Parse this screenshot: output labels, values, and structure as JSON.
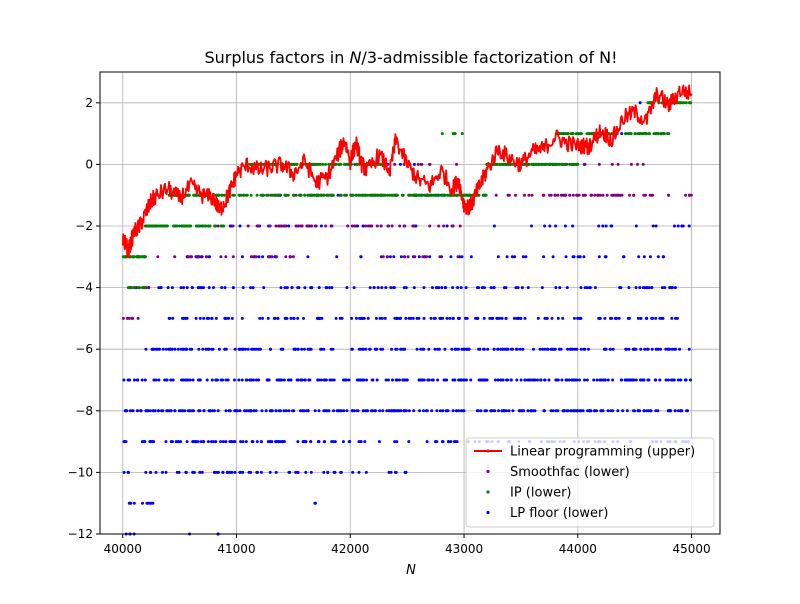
{
  "chart_data": {
    "type": "scatter",
    "title": "Surplus factors in N/3-admissible factorization of N!",
    "title_prefix": "Surplus factors in ",
    "title_italic": "N",
    "title_suffix": "/3-admissible factorization of N!",
    "xlabel": "N",
    "ylabel": "",
    "xlim": [
      39800,
      45250
    ],
    "ylim": [
      -12,
      3
    ],
    "xticks": [
      40000,
      41000,
      42000,
      43000,
      44000,
      45000
    ],
    "yticks": [
      -12,
      -10,
      -8,
      -6,
      -4,
      -2,
      0,
      2
    ],
    "ytick_labels": [
      "−12",
      "−10",
      "−8",
      "−6",
      "−4",
      "−2",
      "0",
      "2"
    ],
    "grid": true,
    "legend_position": "lower-right",
    "series": [
      {
        "name": "Linear programming (upper)",
        "kind": "line",
        "color": "#ff0000",
        "points": [
          [
            40000,
            -2.4
          ],
          [
            40050,
            -2.8
          ],
          [
            40100,
            -2.2
          ],
          [
            40150,
            -2.0
          ],
          [
            40200,
            -1.6
          ],
          [
            40250,
            -1.2
          ],
          [
            40300,
            -1.0
          ],
          [
            40400,
            -0.8
          ],
          [
            40500,
            -1.1
          ],
          [
            40600,
            -0.7
          ],
          [
            40700,
            -1.0
          ],
          [
            40800,
            -1.1
          ],
          [
            40850,
            -1.5
          ],
          [
            40900,
            -1.2
          ],
          [
            40950,
            -0.8
          ],
          [
            41000,
            -0.3
          ],
          [
            41100,
            0.0
          ],
          [
            41200,
            -0.2
          ],
          [
            41300,
            -0.1
          ],
          [
            41400,
            0.0
          ],
          [
            41500,
            -0.3
          ],
          [
            41600,
            0.1
          ],
          [
            41700,
            -0.6
          ],
          [
            41800,
            -0.4
          ],
          [
            41900,
            0.4
          ],
          [
            41950,
            0.8
          ],
          [
            42000,
            0.1
          ],
          [
            42050,
            0.7
          ],
          [
            42100,
            0.0
          ],
          [
            42150,
            -0.2
          ],
          [
            42250,
            0.3
          ],
          [
            42350,
            -0.2
          ],
          [
            42400,
            0.8
          ],
          [
            42500,
            0.0
          ],
          [
            42600,
            -0.5
          ],
          [
            42700,
            -0.7
          ],
          [
            42800,
            -0.2
          ],
          [
            42900,
            -0.8
          ],
          [
            42950,
            -0.5
          ],
          [
            43000,
            -1.3
          ],
          [
            43050,
            -1.4
          ],
          [
            43100,
            -1.0
          ],
          [
            43150,
            -0.6
          ],
          [
            43200,
            -0.2
          ],
          [
            43300,
            0.5
          ],
          [
            43400,
            0.2
          ],
          [
            43500,
            0.0
          ],
          [
            43600,
            0.4
          ],
          [
            43700,
            0.5
          ],
          [
            43800,
            0.9
          ],
          [
            43900,
            0.7
          ],
          [
            44000,
            0.6
          ],
          [
            44100,
            0.6
          ],
          [
            44200,
            1.1
          ],
          [
            44300,
            0.8
          ],
          [
            44400,
            1.5
          ],
          [
            44500,
            1.7
          ],
          [
            44600,
            1.4
          ],
          [
            44700,
            2.3
          ],
          [
            44800,
            1.9
          ],
          [
            44900,
            2.4
          ],
          [
            45000,
            2.3
          ]
        ]
      },
      {
        "name": "Smoothfac (lower)",
        "kind": "points",
        "color": "#800080",
        "levels": [
          [
            -1,
            41300,
            45000,
            110
          ],
          [
            -2,
            40800,
            43000,
            55
          ],
          [
            -3,
            40300,
            43000,
            35
          ],
          [
            -4,
            40050,
            40250,
            14
          ],
          [
            -5,
            40000,
            40150,
            6
          ],
          [
            0,
            42300,
            44600,
            25
          ]
        ]
      },
      {
        "name": "IP (lower)",
        "kind": "points",
        "color": "#008000",
        "levels": [
          [
            -3,
            40000,
            40200,
            40
          ],
          [
            -2,
            40200,
            40400,
            45
          ],
          [
            -2,
            40400,
            40900,
            40
          ],
          [
            -1,
            40400,
            40900,
            60
          ],
          [
            -1,
            40900,
            42500,
            120
          ],
          [
            0,
            41100,
            42000,
            70
          ],
          [
            0,
            42000,
            42300,
            30
          ],
          [
            -1,
            42500,
            43200,
            80
          ],
          [
            0,
            43200,
            44000,
            100
          ],
          [
            1,
            43800,
            44800,
            90
          ],
          [
            2,
            44600,
            45000,
            35
          ],
          [
            -4,
            40000,
            40200,
            10
          ],
          [
            1,
            42800,
            43000,
            6
          ]
        ]
      },
      {
        "name": "LP floor (lower)",
        "kind": "points",
        "color": "#0000ff",
        "levels": [
          [
            -12,
            40000,
            40100,
            4
          ],
          [
            -12,
            40500,
            41000,
            3
          ],
          [
            -11,
            40000,
            40300,
            10
          ],
          [
            -11,
            41650,
            41700,
            2
          ],
          [
            -10,
            40000,
            42200,
            60
          ],
          [
            -10,
            42300,
            42500,
            6
          ],
          [
            -9,
            40000,
            42000,
            90
          ],
          [
            -9,
            42000,
            45000,
            70
          ],
          [
            -8,
            40000,
            45000,
            260
          ],
          [
            -7,
            40000,
            45000,
            240
          ],
          [
            -6,
            40200,
            45000,
            200
          ],
          [
            -5,
            40400,
            45000,
            150
          ],
          [
            -4,
            40300,
            45000,
            110
          ],
          [
            -3,
            40500,
            45000,
            70
          ],
          [
            -2,
            40300,
            45000,
            40
          ],
          [
            -1,
            40100,
            44000,
            15
          ],
          [
            0,
            41000,
            43500,
            8
          ],
          [
            1,
            44000,
            44800,
            4
          ],
          [
            2,
            44500,
            44900,
            3
          ]
        ]
      }
    ]
  }
}
